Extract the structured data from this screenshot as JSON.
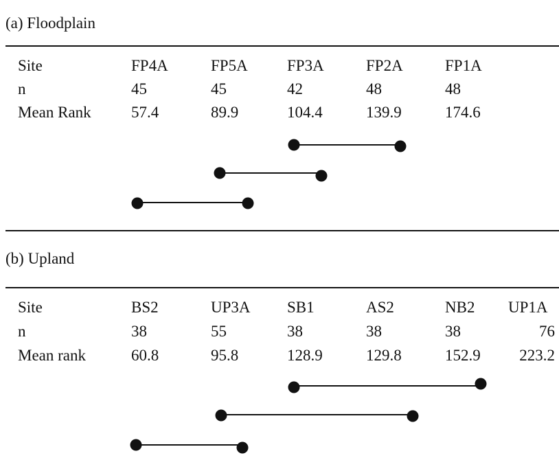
{
  "floodplain": {
    "heading": "(a) Floodplain",
    "row_labels": {
      "site": "Site",
      "n": "n",
      "mean_rank": "Mean Rank"
    },
    "sites": [
      "FP4A",
      "FP5A",
      "FP3A",
      "FP2A",
      "FP1A"
    ],
    "n": [
      "45",
      "45",
      "42",
      "48",
      "48"
    ],
    "mean_rank": [
      "57.4",
      "89.9",
      "104.4",
      "139.9",
      "174.6"
    ],
    "groupings": [
      {
        "from": "FP3A",
        "to": "FP2A"
      },
      {
        "from": "FP5A",
        "to": "FP3A"
      },
      {
        "from": "FP4A",
        "to": "FP5A"
      }
    ]
  },
  "upland": {
    "heading": "(b) Upland",
    "row_labels": {
      "site": "Site",
      "n": "n",
      "mean_rank": "Mean rank"
    },
    "sites": [
      "BS2",
      "UP3A",
      "SB1",
      "AS2",
      "NB2",
      "UP1A"
    ],
    "n": [
      "38",
      "55",
      "38",
      "38",
      "38",
      "76"
    ],
    "mean_rank": [
      "60.8",
      "95.8",
      "128.9",
      "129.8",
      "152.9",
      "223.2"
    ],
    "groupings": [
      {
        "from": "SB1",
        "to": "NB2"
      },
      {
        "from": "UP3A",
        "to": "AS2"
      },
      {
        "from": "BS2",
        "to": "UP3A"
      }
    ]
  }
}
